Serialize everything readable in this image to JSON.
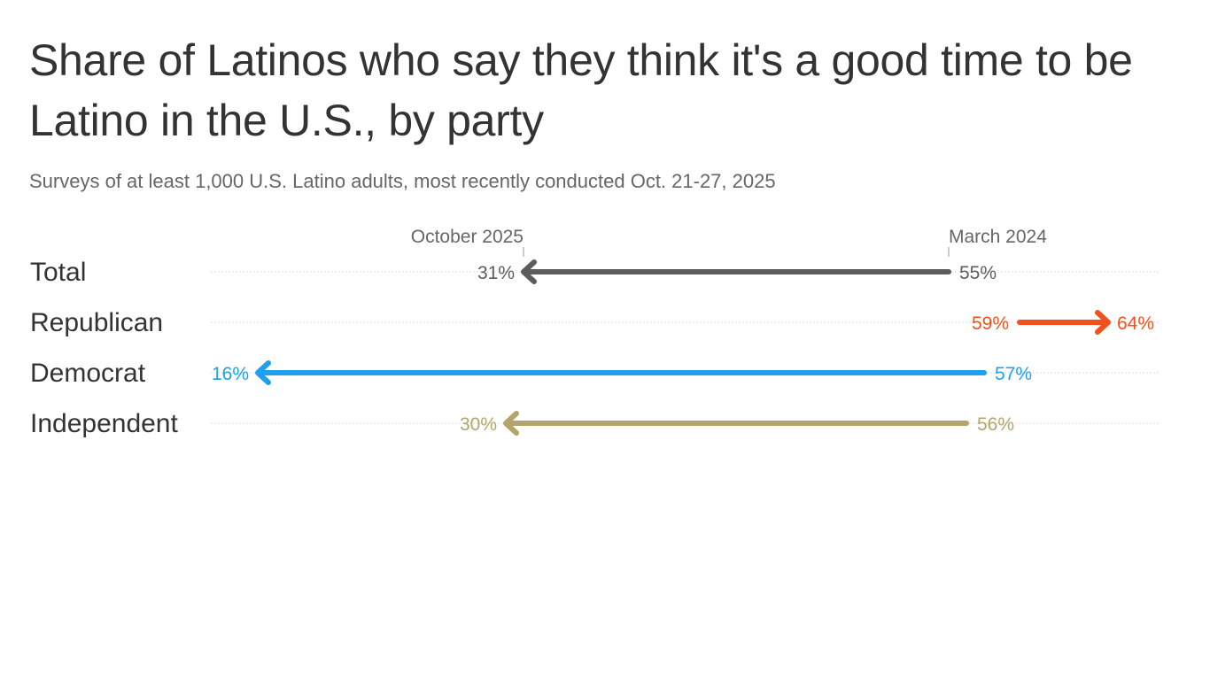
{
  "chart_data": {
    "type": "arrow",
    "title": "Share of Latinos who say they think it's a good time to be Latino in the U.S., by party",
    "subtitle": "Surveys of at least 1,000 U.S. Latino adults, most recently conducted Oct. 21-27, 2025",
    "start_label": "March 2024",
    "end_label": "October 2025",
    "value_suffix": "%",
    "xlim": [
      15,
      65
    ],
    "grid": false,
    "series": [
      {
        "name": "Total",
        "start": 55,
        "end": 31,
        "color": "#5c5c5c",
        "start_text": "55%",
        "end_text": "31%"
      },
      {
        "name": "Republican",
        "start": 59,
        "end": 64,
        "color": "#f2501d",
        "start_text": "59%",
        "end_text": "64%"
      },
      {
        "name": "Democrat",
        "start": 57,
        "end": 16,
        "color": "#1e9ff0",
        "start_text": "57%",
        "end_text": "16%"
      },
      {
        "name": "Independent",
        "start": 56,
        "end": 30,
        "color": "#b3a46b",
        "start_text": "56%",
        "end_text": "30%"
      }
    ]
  }
}
